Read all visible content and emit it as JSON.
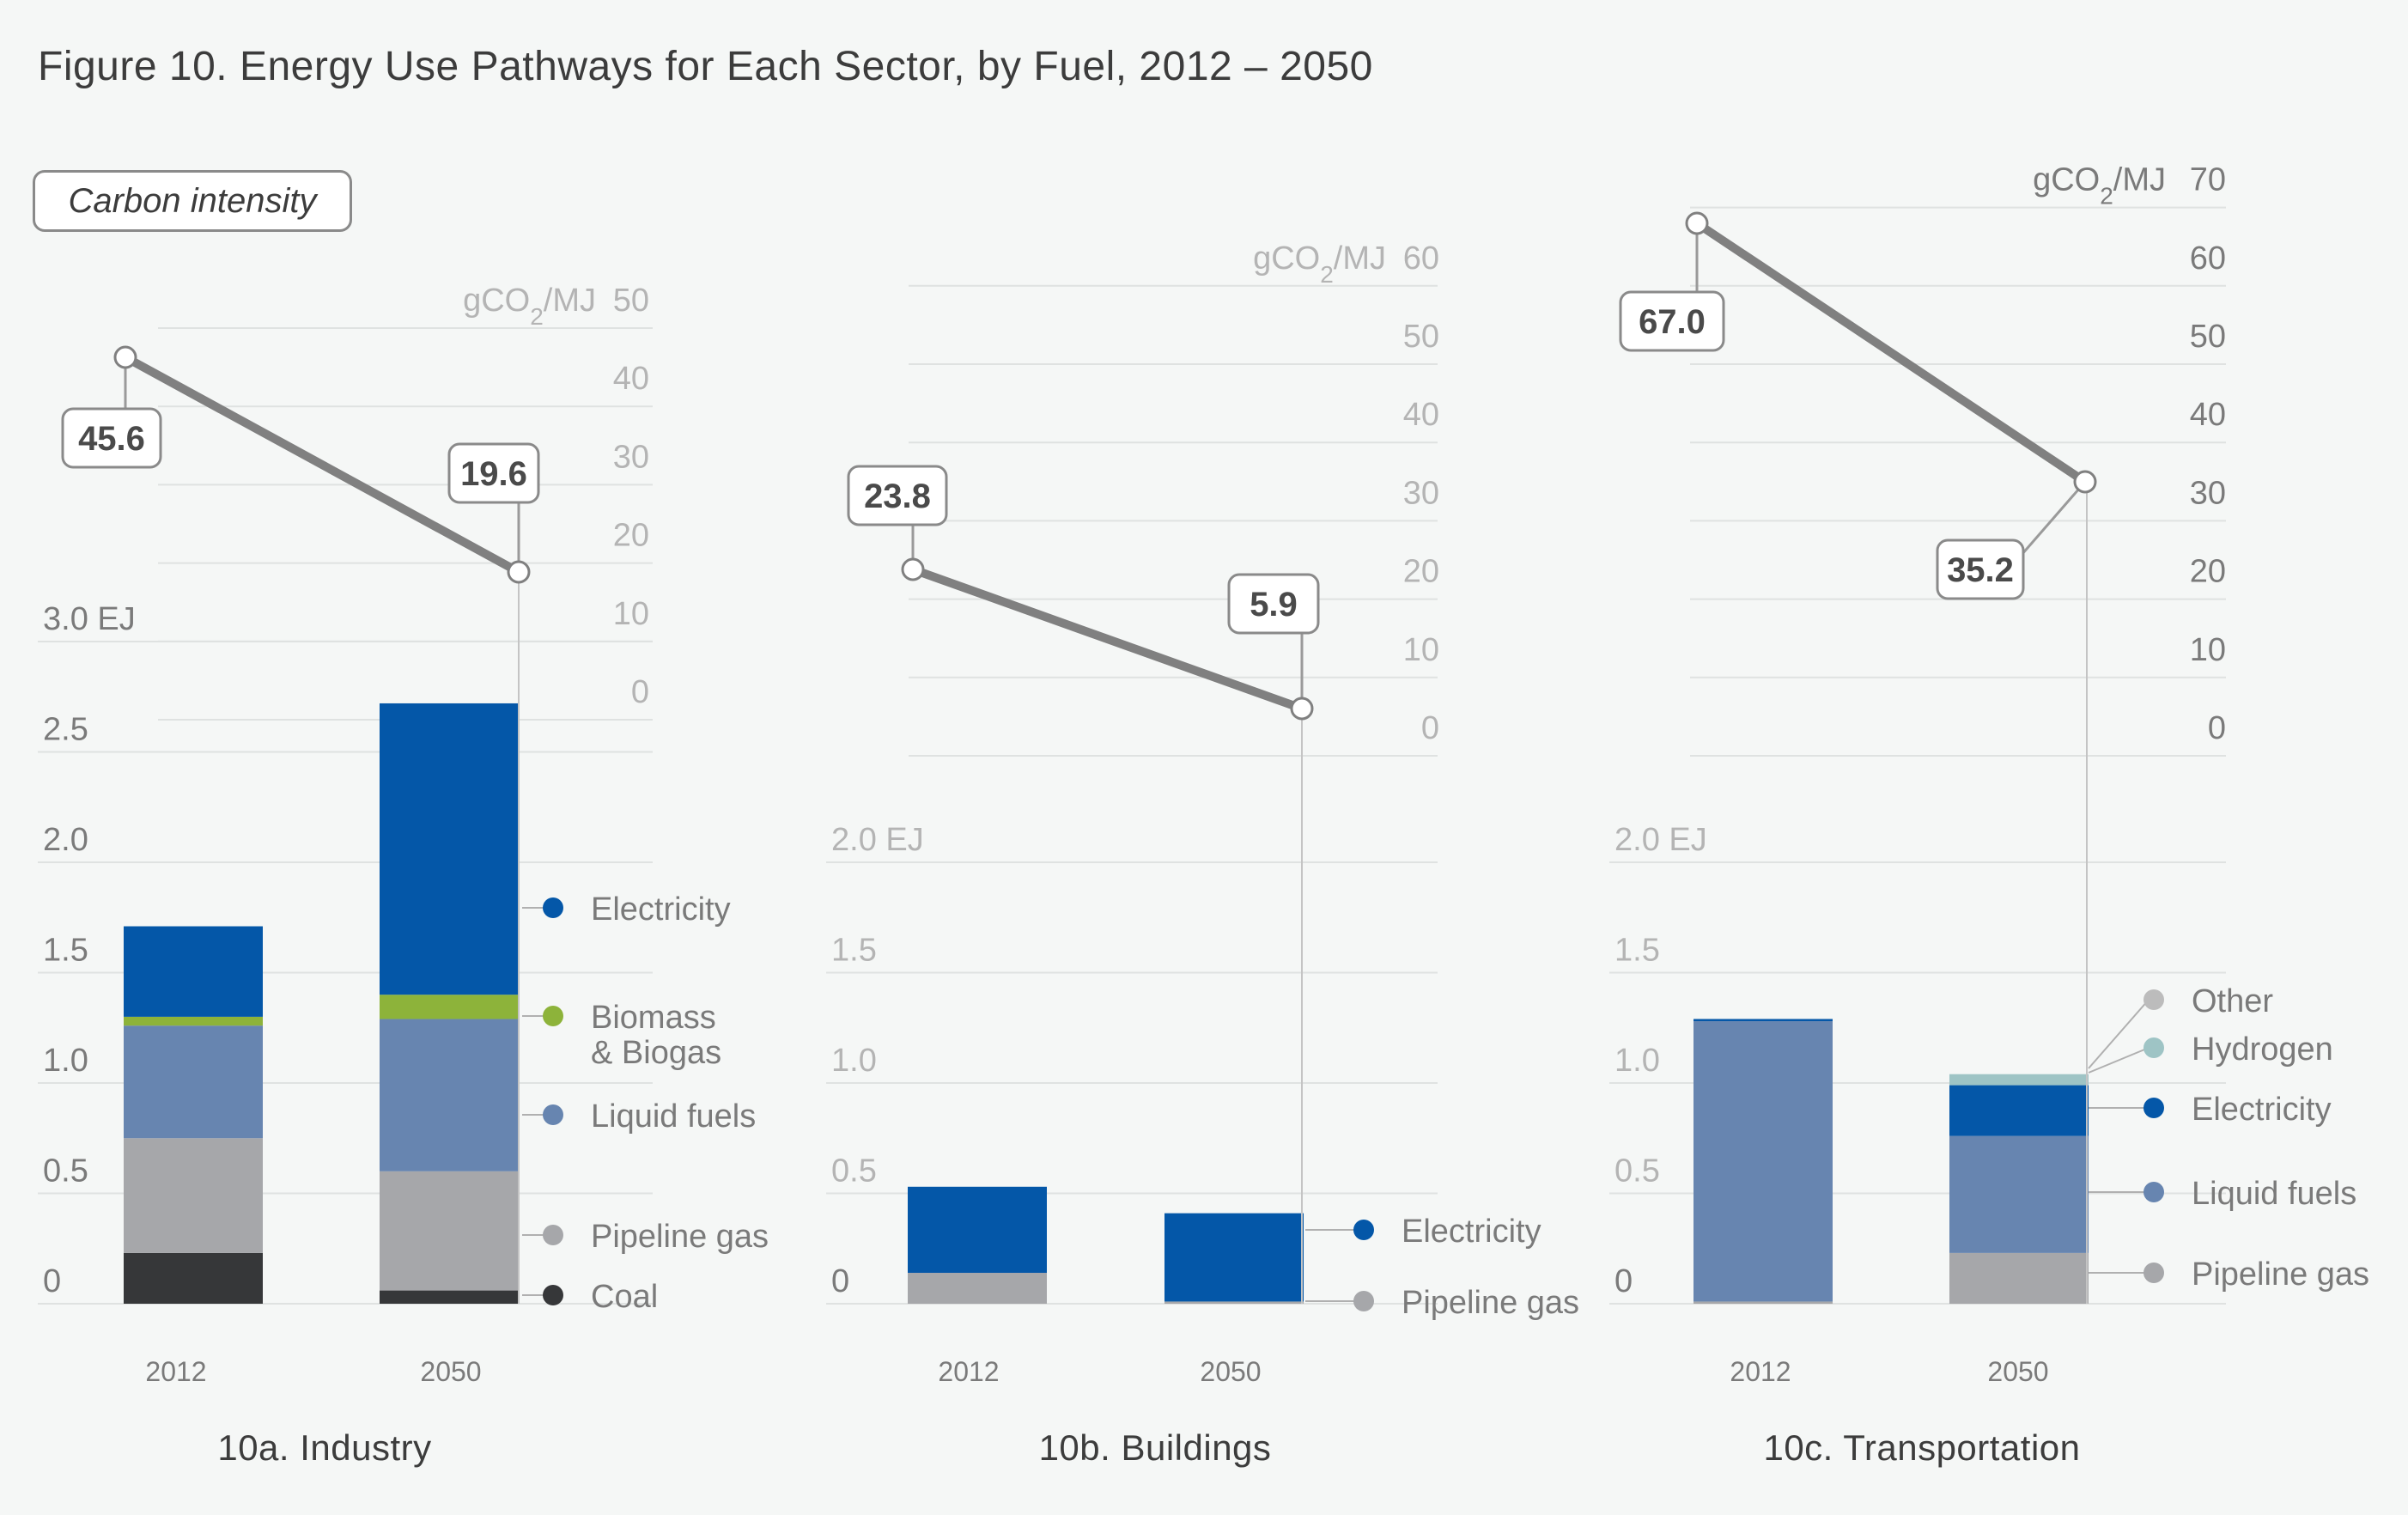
{
  "title": "Figure 10. Energy Use Pathways for Each Sector, by Fuel, 2012 – 2050",
  "carbon_intensity_label": "Carbon intensity",
  "colors": {
    "Electricity": "#0457a8",
    "Biomass & Biogas": "#8db33a",
    "Liquid fuels": "#6785b0",
    "Pipeline gas": "#a6a7aa",
    "Coal": "#363739",
    "Hydrogen": "#9ec4c5",
    "Other": "#bcbcbc"
  },
  "chart_data": [
    {
      "type": "bar",
      "stacked": true,
      "subtitle": "10a. Industry",
      "categories": [
        "2012",
        "2050"
      ],
      "y_unit": "EJ",
      "ylim": [
        0,
        3.0
      ],
      "y_ticks": [
        "0",
        "0.5",
        "1.0",
        "1.5",
        "2.0",
        "2.5",
        "3.0"
      ],
      "series": [
        {
          "name": "Coal",
          "values": [
            0.23,
            0.06
          ]
        },
        {
          "name": "Pipeline gas",
          "values": [
            0.52,
            0.54
          ]
        },
        {
          "name": "Liquid fuels",
          "values": [
            0.51,
            0.69
          ]
        },
        {
          "name": "Biomass & Biogas",
          "values": [
            0.04,
            0.11
          ]
        },
        {
          "name": "Electricity",
          "values": [
            0.41,
            1.32
          ]
        }
      ],
      "carbon_intensity": {
        "unit": "gCO2/MJ",
        "ylim": [
          0,
          50
        ],
        "ticks": [
          "0",
          "10",
          "20",
          "30",
          "40",
          "50"
        ],
        "values": [
          "45.6",
          "19.6"
        ]
      }
    },
    {
      "type": "bar",
      "stacked": true,
      "subtitle": "10b. Buildings",
      "categories": [
        "2012",
        "2050"
      ],
      "y_unit": "EJ",
      "ylim": [
        0,
        2.0
      ],
      "y_ticks": [
        "0",
        "0.5",
        "1.0",
        "1.5",
        "2.0"
      ],
      "series": [
        {
          "name": "Pipeline gas",
          "values": [
            0.14,
            0.01
          ]
        },
        {
          "name": "Electricity",
          "values": [
            0.39,
            0.4
          ]
        }
      ],
      "carbon_intensity": {
        "unit": "gCO2/MJ",
        "ylim": [
          0,
          60
        ],
        "ticks": [
          "0",
          "10",
          "20",
          "30",
          "40",
          "50",
          "60"
        ],
        "values": [
          "23.8",
          "5.9"
        ]
      }
    },
    {
      "type": "bar",
      "stacked": true,
      "subtitle": "10c. Transportation",
      "categories": [
        "2012",
        "2050"
      ],
      "y_unit": "EJ",
      "ylim": [
        0,
        2.0
      ],
      "y_ticks": [
        "0",
        "0.5",
        "1.0",
        "1.5",
        "2.0"
      ],
      "series": [
        {
          "name": "Pipeline gas",
          "values": [
            0.01,
            0.23
          ]
        },
        {
          "name": "Liquid fuels",
          "values": [
            1.27,
            0.53
          ]
        },
        {
          "name": "Electricity",
          "values": [
            0.01,
            0.23
          ]
        },
        {
          "name": "Hydrogen",
          "values": [
            0.0,
            0.05
          ]
        },
        {
          "name": "Other",
          "values": [
            0.0,
            0.0
          ]
        }
      ],
      "carbon_intensity": {
        "unit": "gCO2/MJ",
        "ylim": [
          0,
          70
        ],
        "ticks": [
          "0",
          "10",
          "20",
          "30",
          "40",
          "50",
          "60",
          "70"
        ],
        "values": [
          "67.0",
          "35.2"
        ]
      }
    }
  ]
}
